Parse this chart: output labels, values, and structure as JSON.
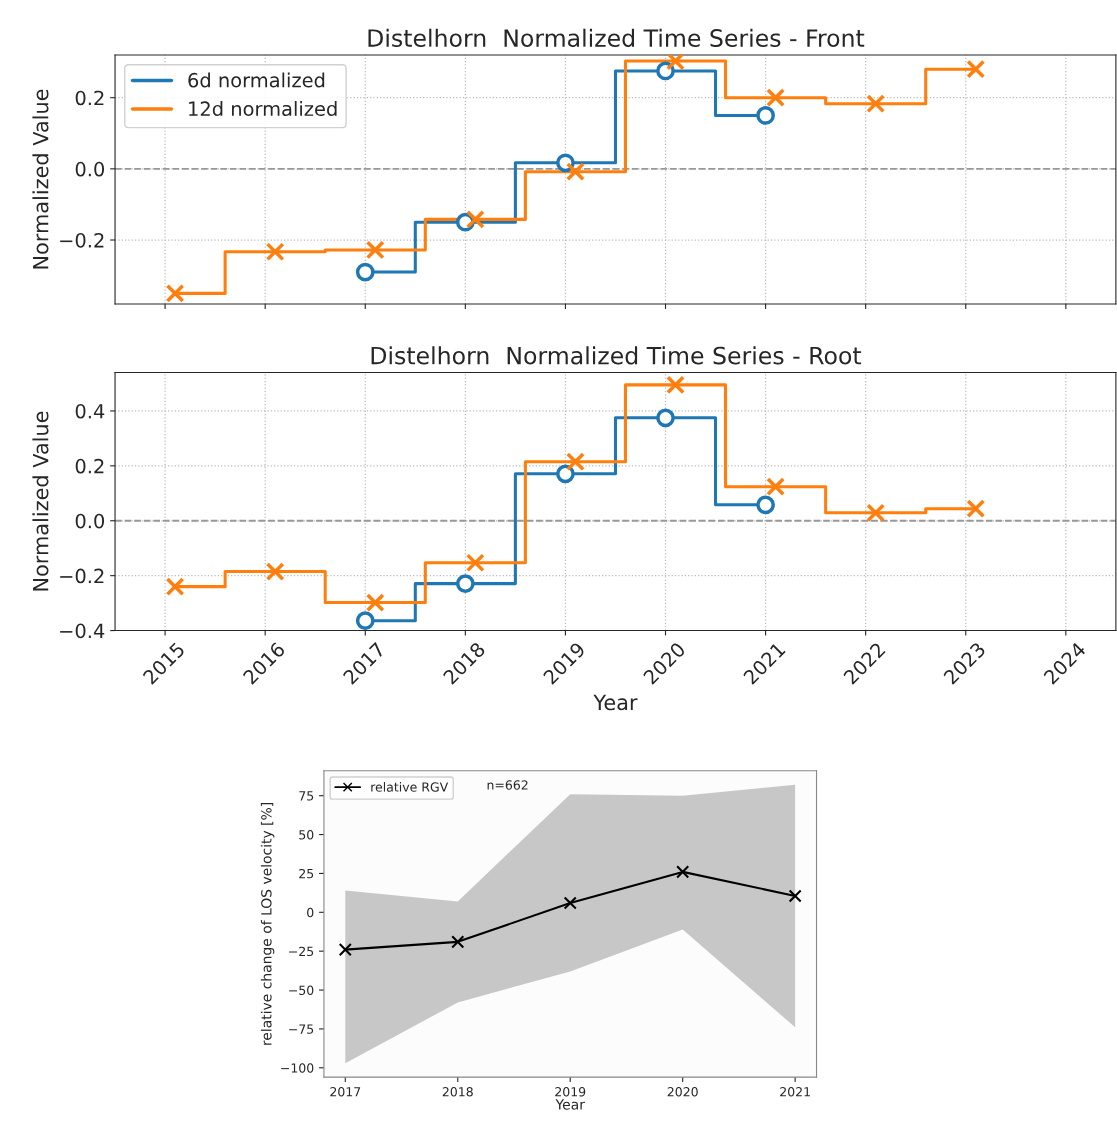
{
  "chart_data": [
    {
      "type": "step",
      "title": "Distelhorn  Normalized Time Series - Front",
      "ylabel": "Normalized Value",
      "xlim": [
        2014.5,
        2024.5
      ],
      "xticks": [
        2015,
        2016,
        2017,
        2018,
        2019,
        2020,
        2021,
        2022,
        2023,
        2024
      ],
      "ylim": [
        -0.38,
        0.32
      ],
      "yticks": [
        {
          "value": -0.2,
          "label": "−0.2"
        },
        {
          "value": 0.0,
          "label": "0.0"
        },
        {
          "value": 0.2,
          "label": "0.2"
        }
      ],
      "tick_labels": "y",
      "grid": true,
      "legend": "top left",
      "ref_lines": [
        {
          "axis": "y",
          "value": 0,
          "color": "#999999",
          "line_style": "dashed"
        }
      ],
      "series": [
        {
          "name": "6d normalized",
          "color": "#1f77b4",
          "marker": "circle",
          "x": [
            2017,
            2018,
            2019,
            2020,
            2021
          ],
          "values": [
            -0.29,
            -0.15,
            0.017,
            0.275,
            0.15
          ]
        },
        {
          "name": "12d normalized",
          "color": "#ff7f0e",
          "marker": "cross",
          "x": [
            2015.1,
            2016.1,
            2017.1,
            2018.1,
            2019.1,
            2020.1,
            2021.1,
            2022.1,
            2023.1
          ],
          "values": [
            -0.35,
            -0.233,
            -0.228,
            -0.142,
            -0.008,
            0.303,
            0.2,
            0.183,
            0.28
          ]
        }
      ]
    },
    {
      "type": "step",
      "title": "Distelhorn  Normalized Time Series - Root",
      "ylabel": "Normalized Value",
      "xlabel": "Year",
      "xlim": [
        2014.5,
        2024.5
      ],
      "xticks": [
        2015,
        2016,
        2017,
        2018,
        2019,
        2020,
        2021,
        2022,
        2023,
        2024
      ],
      "ylim": [
        -0.4,
        0.54
      ],
      "yticks": [
        {
          "value": -0.4,
          "label": "−0.4"
        },
        {
          "value": -0.2,
          "label": "−0.2"
        },
        {
          "value": 0.0,
          "label": "0.0"
        },
        {
          "value": 0.2,
          "label": "0.2"
        },
        {
          "value": 0.4,
          "label": "0.4"
        }
      ],
      "grid": true,
      "ref_lines": [
        {
          "axis": "y",
          "value": 0,
          "color": "#999999",
          "line_style": "dashed"
        }
      ],
      "series": [
        {
          "color": "#1f77b4",
          "marker": "circle",
          "x": [
            2017,
            2018,
            2019,
            2020,
            2021
          ],
          "values": [
            -0.364,
            -0.229,
            0.171,
            0.375,
            0.058
          ]
        },
        {
          "color": "#ff7f0e",
          "marker": "cross",
          "x": [
            2015.1,
            2016.1,
            2017.1,
            2018.1,
            2019.1,
            2020.1,
            2021.1,
            2022.1,
            2023.1
          ],
          "values": [
            -0.24,
            -0.185,
            -0.298,
            -0.153,
            0.215,
            0.495,
            0.124,
            0.029,
            0.044
          ]
        }
      ]
    },
    {
      "type": "line",
      "xlabel": "Year",
      "ylabel": "relative change of LOS velocity [%]",
      "xlim": [
        2016.81,
        2021.19
      ],
      "xticks": [
        2017,
        2018,
        2019,
        2020,
        2021
      ],
      "ylim": [
        -106,
        91
      ],
      "yticks": [
        {
          "value": -100,
          "label": "−100"
        },
        {
          "value": -75,
          "label": "−75"
        },
        {
          "value": -50,
          "label": "−50"
        },
        {
          "value": -25,
          "label": "−25"
        },
        0,
        25,
        50,
        75
      ],
      "legend": "top left",
      "annotations": [
        "n=662"
      ],
      "series": [
        {
          "name": "relative RGV",
          "color": "#000000",
          "marker": "cross",
          "x": [
            2017,
            2018,
            2019,
            2020,
            2021
          ],
          "values": [
            -24,
            -19,
            6,
            26,
            10.5
          ],
          "lower": [
            -97,
            -58,
            -38,
            -11,
            -74
          ],
          "upper": [
            14,
            7,
            76,
            75,
            82
          ]
        }
      ]
    }
  ]
}
